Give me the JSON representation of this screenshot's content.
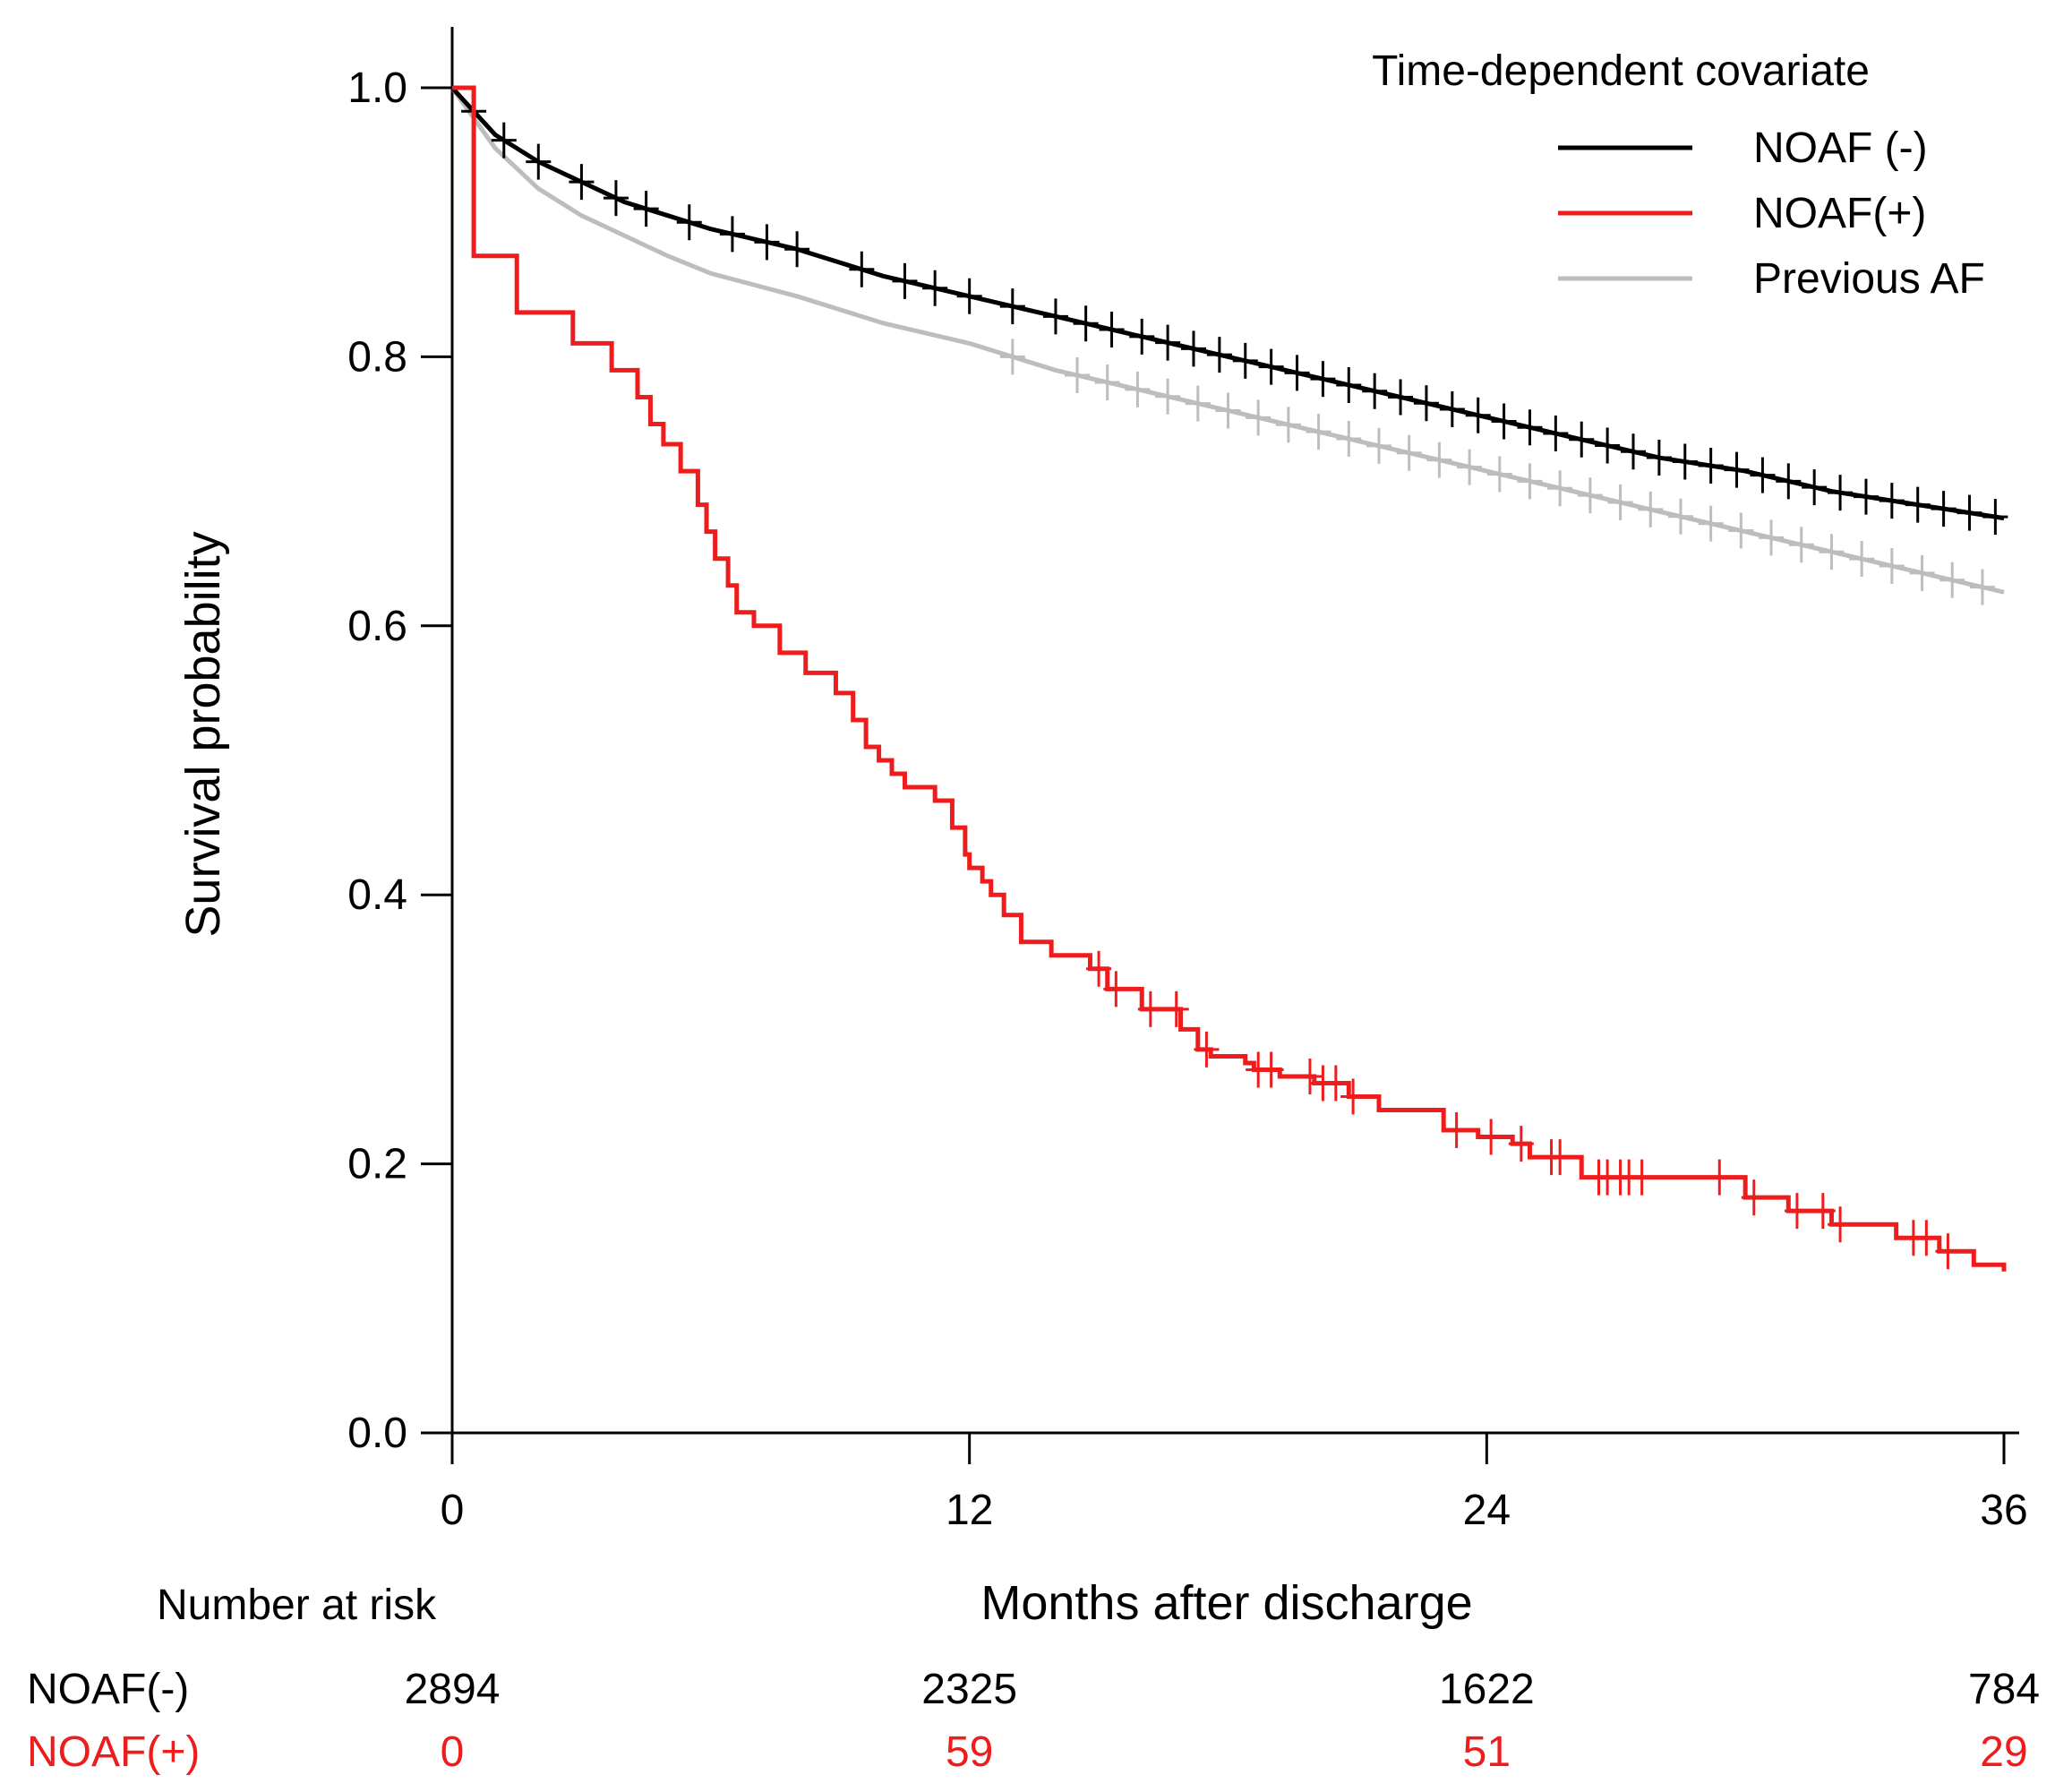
{
  "chart_data": {
    "type": "line",
    "title": "",
    "xlabel": "Months after discharge",
    "ylabel": "Survival probability",
    "xlim": [
      0,
      36
    ],
    "ylim": [
      0,
      1
    ],
    "x_ticks": [
      "0",
      "12",
      "24",
      "36"
    ],
    "y_ticks": [
      "0.0",
      "0.2",
      "0.4",
      "0.6",
      "0.8",
      "1.0"
    ],
    "grid": false,
    "legend": {
      "title": "Time-dependent covariate",
      "placement": "top-right",
      "entries": [
        "NOAF (-)",
        "NOAF(+)",
        "Previous AF"
      ]
    },
    "series": [
      {
        "name": "NOAF (-)",
        "color": "#000000",
        "step": false,
        "x": [
          0,
          1,
          2,
          3,
          4,
          5,
          6,
          8,
          10,
          12,
          14,
          16,
          18,
          20,
          22,
          24,
          26,
          28,
          30,
          32,
          34,
          36
        ],
        "y": [
          1.0,
          0.965,
          0.945,
          0.93,
          0.915,
          0.905,
          0.895,
          0.88,
          0.86,
          0.845,
          0.83,
          0.815,
          0.8,
          0.785,
          0.77,
          0.755,
          0.74,
          0.725,
          0.715,
          0.7,
          0.69,
          0.68
        ],
        "censor_x": [
          0.5,
          1.2,
          2.0,
          3.0,
          3.8,
          4.5,
          5.5,
          6.5,
          7.3,
          8.0,
          9.5,
          10.5,
          11.2,
          12.0,
          13.0,
          14.0,
          14.7,
          15.3,
          16.0,
          16.6,
          17.2,
          17.8,
          18.4,
          19.0,
          19.6,
          20.2,
          20.8,
          21.4,
          22.0,
          22.6,
          23.2,
          23.8,
          24.4,
          25.0,
          25.6,
          26.2,
          26.8,
          27.4,
          28.0,
          28.6,
          29.2,
          29.8,
          30.4,
          31.0,
          31.6,
          32.2,
          32.8,
          33.4,
          34.0,
          34.6,
          35.2,
          35.8
        ]
      },
      {
        "name": "NOAF(+)",
        "color": "#ee1c1c",
        "step": true,
        "x": [
          0,
          0.5,
          1.5,
          2.8,
          3.7,
          4.3,
          4.6,
          4.9,
          5.3,
          5.7,
          5.9,
          6.1,
          6.4,
          6.6,
          7.0,
          7.6,
          8.2,
          8.9,
          9.3,
          9.6,
          9.9,
          10.2,
          10.5,
          11.2,
          11.6,
          11.9,
          12.0,
          12.3,
          12.5,
          12.8,
          13.2,
          13.9,
          14.8,
          15.2,
          16.0,
          16.9,
          17.3,
          17.6,
          18.4,
          18.6,
          19.2,
          20.0,
          20.8,
          21.5,
          23.0,
          23.8,
          24.6,
          25.0,
          26.2,
          28.5,
          30.0,
          31.0,
          32.0,
          33.5,
          34.5,
          35.3,
          36.0
        ],
        "y": [
          1.0,
          0.875,
          0.833,
          0.81,
          0.79,
          0.77,
          0.75,
          0.735,
          0.715,
          0.69,
          0.67,
          0.65,
          0.63,
          0.61,
          0.6,
          0.58,
          0.565,
          0.55,
          0.53,
          0.51,
          0.5,
          0.49,
          0.48,
          0.47,
          0.45,
          0.43,
          0.42,
          0.41,
          0.4,
          0.385,
          0.365,
          0.355,
          0.345,
          0.33,
          0.315,
          0.3,
          0.285,
          0.28,
          0.275,
          0.27,
          0.265,
          0.26,
          0.25,
          0.24,
          0.225,
          0.22,
          0.215,
          0.205,
          0.19,
          0.19,
          0.175,
          0.165,
          0.155,
          0.145,
          0.135,
          0.125,
          0.12
        ],
        "censor_x": [
          15.0,
          15.4,
          16.2,
          16.8,
          17.5,
          18.7,
          19.0,
          19.9,
          20.2,
          20.5,
          20.9,
          23.3,
          24.1,
          24.8,
          25.5,
          25.7,
          26.6,
          26.8,
          27.1,
          27.3,
          27.6,
          29.4,
          30.2,
          31.2,
          31.8,
          32.2,
          33.9,
          34.2,
          34.7
        ]
      },
      {
        "name": "Previous AF",
        "color": "#bdbdbd",
        "step": false,
        "x": [
          0,
          1,
          2,
          3,
          4,
          5,
          6,
          8,
          10,
          12,
          14,
          16,
          18,
          20,
          22,
          24,
          26,
          28,
          30,
          32,
          34,
          36
        ],
        "y": [
          1.0,
          0.955,
          0.925,
          0.905,
          0.89,
          0.875,
          0.862,
          0.845,
          0.825,
          0.81,
          0.79,
          0.775,
          0.76,
          0.745,
          0.73,
          0.715,
          0.7,
          0.685,
          0.67,
          0.655,
          0.64,
          0.625
        ],
        "censor_x": [
          13.0,
          14.5,
          15.2,
          15.9,
          16.6,
          17.3,
          18.0,
          18.7,
          19.4,
          20.1,
          20.8,
          21.5,
          22.2,
          22.9,
          23.6,
          24.3,
          25.0,
          25.7,
          26.4,
          27.1,
          27.8,
          28.5,
          29.2,
          29.9,
          30.6,
          31.3,
          32.0,
          32.7,
          33.4,
          34.1,
          34.8,
          35.5
        ]
      }
    ]
  },
  "risk_table": {
    "title": "Number at risk",
    "times": [
      0,
      12,
      24,
      36
    ],
    "rows": [
      {
        "label": "NOAF(-)",
        "color": "#000000",
        "counts": [
          "2894",
          "2325",
          "1622",
          "784"
        ]
      },
      {
        "label": "NOAF(+)",
        "color": "#ee1c1c",
        "counts": [
          "0",
          "59",
          "51",
          "29"
        ]
      }
    ]
  }
}
